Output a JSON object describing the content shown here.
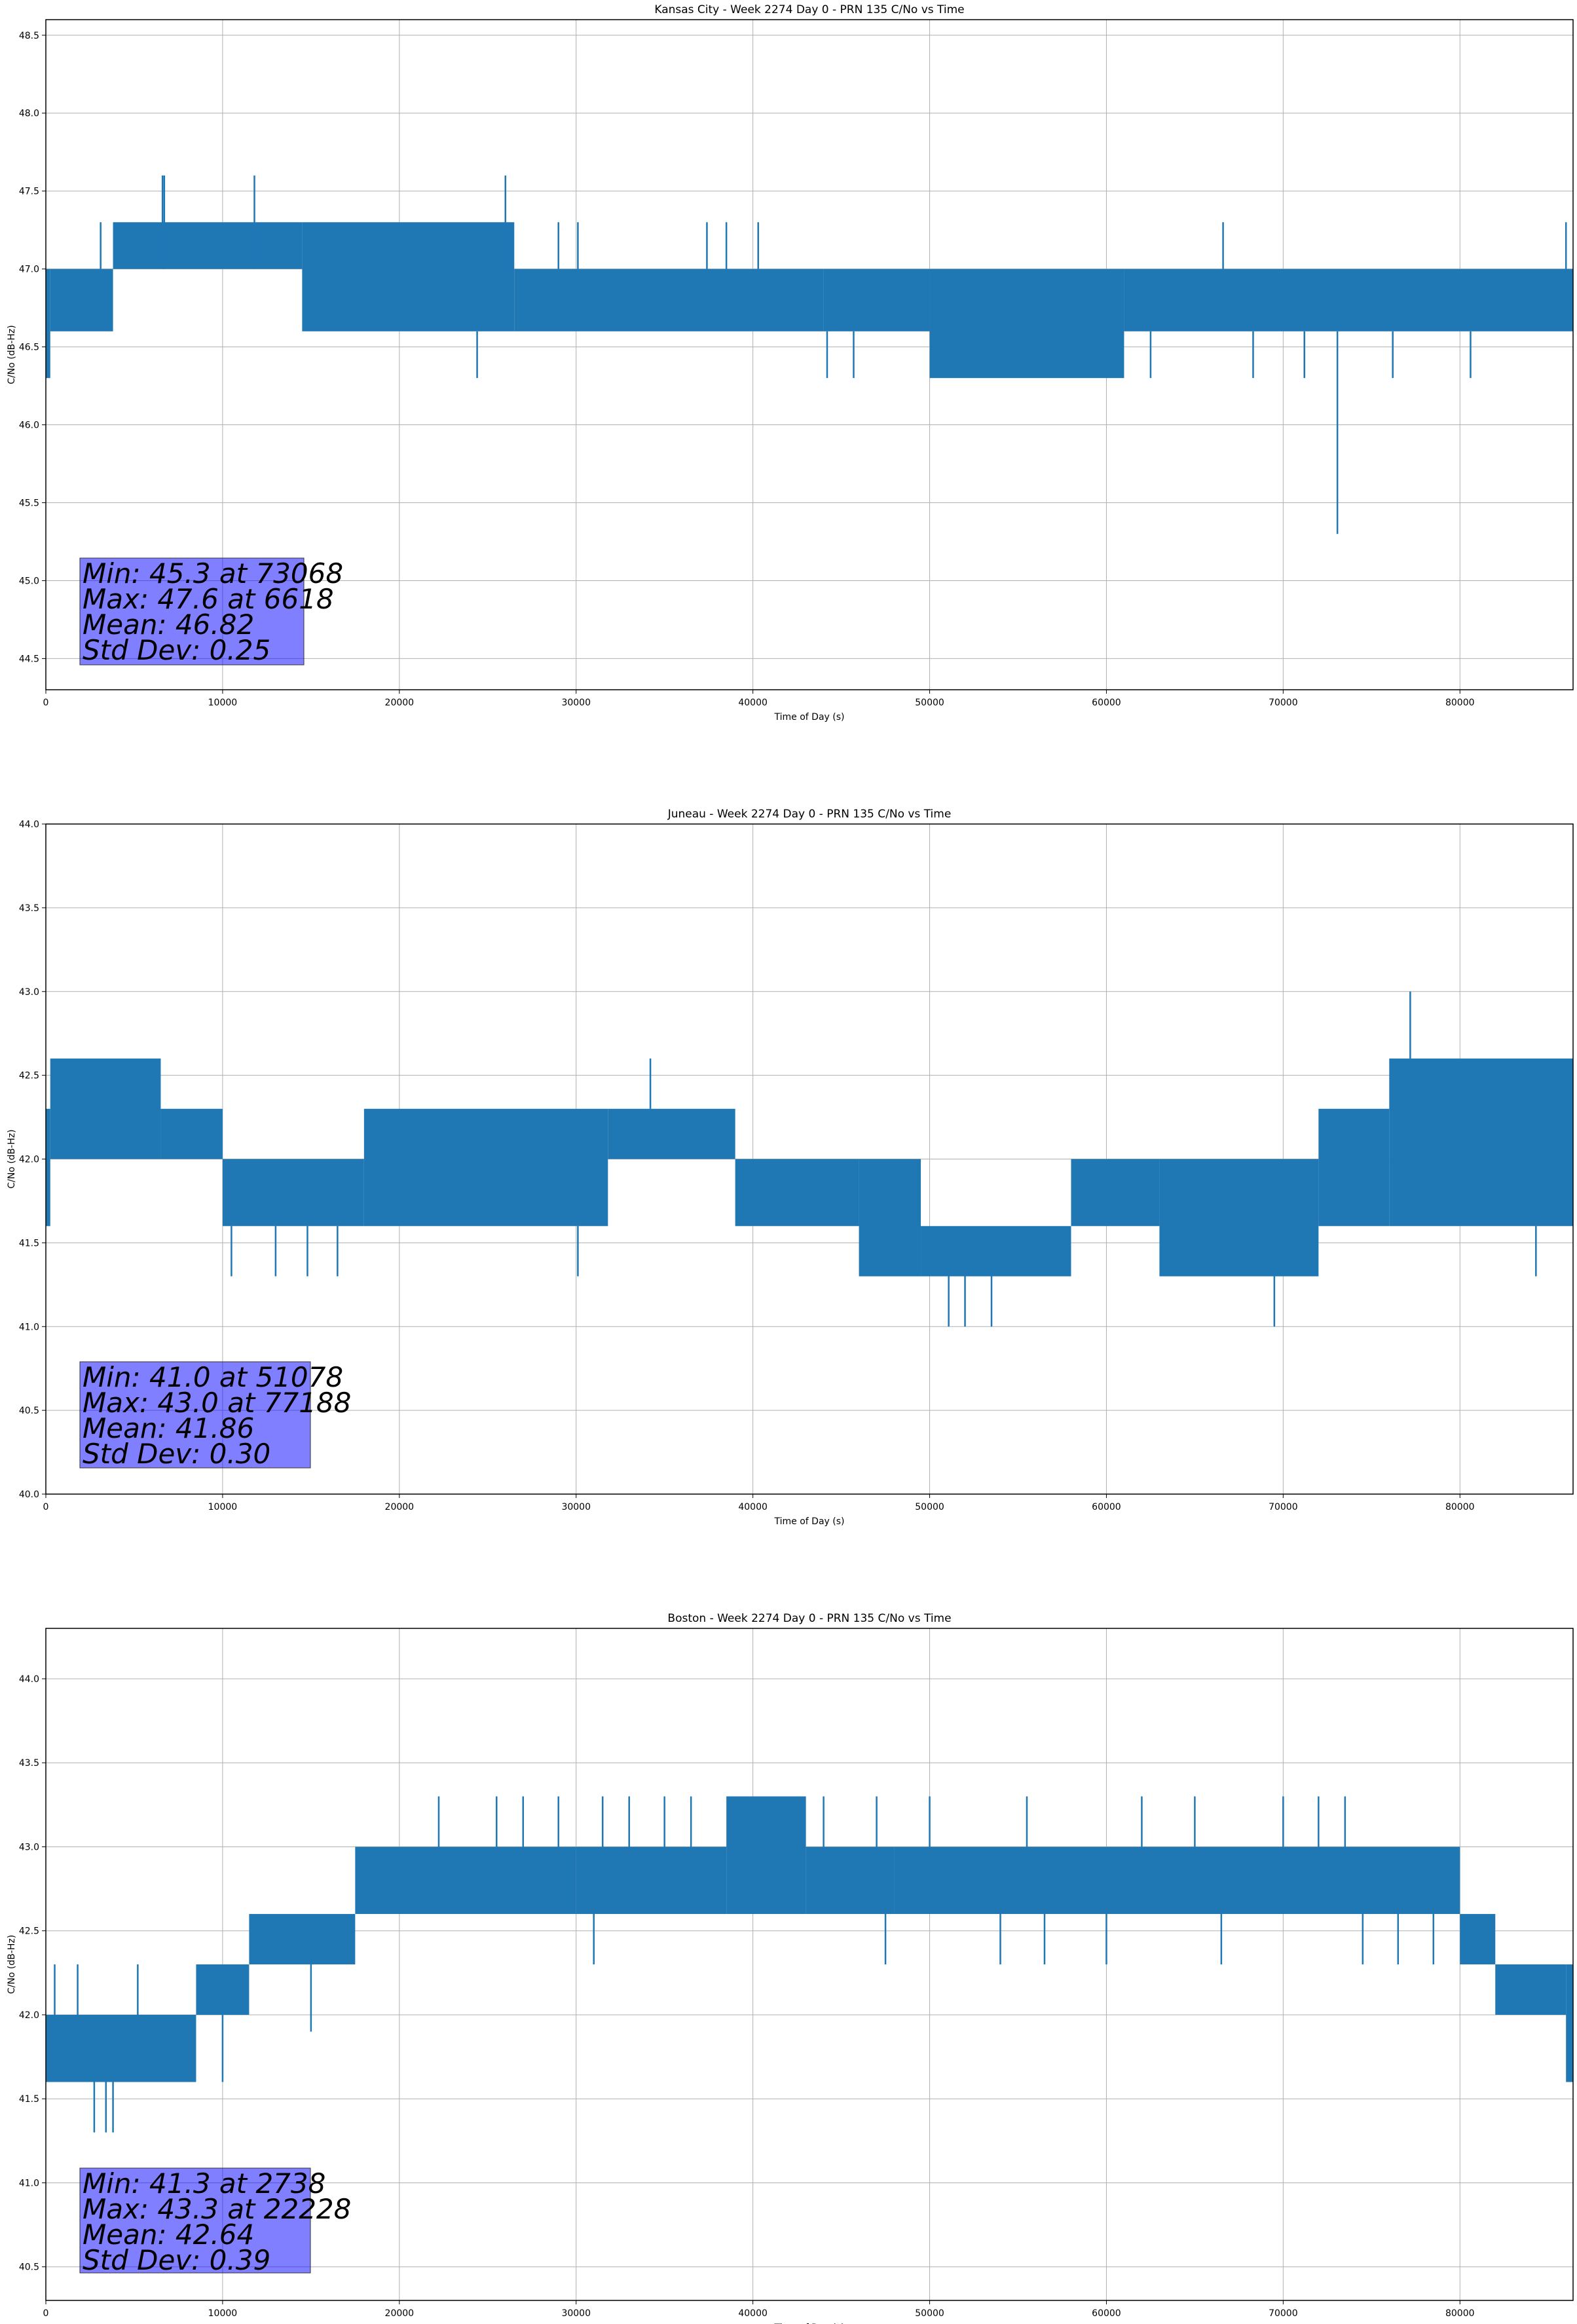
{
  "chart_data": [
    {
      "type": "line",
      "title": "Kansas City - Week 2274 Day 0 - PRN 135 C/No vs Time",
      "xlabel": "Time of Day (s)",
      "ylabel": "C/No (dB-Hz)",
      "xlim": [
        0,
        86400
      ],
      "ylim": [
        44.3,
        48.6
      ],
      "xticks": [
        0,
        10000,
        20000,
        30000,
        40000,
        50000,
        60000,
        70000,
        80000
      ],
      "xtick_labels": [
        "0",
        "10000",
        "20000",
        "30000",
        "40000",
        "50000",
        "60000",
        "70000",
        "80000"
      ],
      "yticks": [
        44.5,
        45.0,
        45.5,
        46.0,
        46.5,
        47.0,
        47.5,
        48.0,
        48.5
      ],
      "ytick_labels": [
        "44.5",
        "45.0",
        "45.5",
        "46.0",
        "46.5",
        "47.0",
        "47.5",
        "48.0",
        "48.5"
      ],
      "grid": true,
      "color": "#1f77b4",
      "segments": [
        {
          "x": [
            0,
            250
          ],
          "low": 46.3,
          "high": 47.0
        },
        {
          "x": [
            250,
            3800
          ],
          "low": 46.6,
          "high": 47.0
        },
        {
          "x": [
            3800,
            14500
          ],
          "low": 47.0,
          "high": 47.3
        },
        {
          "x": [
            14500,
            26500
          ],
          "low": 46.6,
          "high": 47.3
        },
        {
          "x": [
            26500,
            44000
          ],
          "low": 46.6,
          "high": 47.0
        },
        {
          "x": [
            44000,
            50000
          ],
          "low": 46.6,
          "high": 47.0
        },
        {
          "x": [
            50000,
            61000
          ],
          "low": 46.3,
          "high": 47.0
        },
        {
          "x": [
            61000,
            86400
          ],
          "low": 46.6,
          "high": 47.0
        }
      ],
      "spikes": [
        {
          "x": 6600,
          "low": 47.0,
          "high": 47.6
        },
        {
          "x": 6700,
          "low": 47.0,
          "high": 47.6
        },
        {
          "x": 11800,
          "low": 47.0,
          "high": 47.6
        },
        {
          "x": 26000,
          "low": 47.0,
          "high": 47.6
        },
        {
          "x": 24400,
          "low": 46.3,
          "high": 46.6
        },
        {
          "x": 3100,
          "low": 47.0,
          "high": 47.3
        },
        {
          "x": 29000,
          "low": 47.0,
          "high": 47.3
        },
        {
          "x": 30100,
          "low": 47.0,
          "high": 47.3
        },
        {
          "x": 37400,
          "low": 47.0,
          "high": 47.3
        },
        {
          "x": 38500,
          "low": 47.0,
          "high": 47.3
        },
        {
          "x": 40300,
          "low": 47.0,
          "high": 47.3
        },
        {
          "x": 66600,
          "low": 47.0,
          "high": 47.3
        },
        {
          "x": 86000,
          "low": 47.0,
          "high": 47.3
        },
        {
          "x": 44200,
          "low": 46.3,
          "high": 46.6
        },
        {
          "x": 45700,
          "low": 46.3,
          "high": 46.6
        },
        {
          "x": 62500,
          "low": 46.3,
          "high": 46.6
        },
        {
          "x": 68300,
          "low": 46.3,
          "high": 46.6
        },
        {
          "x": 71200,
          "low": 46.3,
          "high": 46.6
        },
        {
          "x": 76200,
          "low": 46.3,
          "high": 46.6
        },
        {
          "x": 80600,
          "low": 46.3,
          "high": 46.6
        },
        {
          "x": 73068,
          "low": 45.3,
          "high": 46.6
        }
      ],
      "stats_lines": [
        "Min: 45.3 at 73068",
        "Max: 47.6 at 6618",
        "Mean: 46.82",
        "Std Dev: 0.25"
      ]
    },
    {
      "type": "line",
      "title": "Juneau - Week 2274 Day 0 - PRN 135 C/No vs Time",
      "xlabel": "Time of Day (s)",
      "ylabel": "C/No (dB-Hz)",
      "xlim": [
        0,
        86400
      ],
      "ylim": [
        40.0,
        44.0
      ],
      "xticks": [
        0,
        10000,
        20000,
        30000,
        40000,
        50000,
        60000,
        70000,
        80000
      ],
      "xtick_labels": [
        "0",
        "10000",
        "20000",
        "30000",
        "40000",
        "50000",
        "60000",
        "70000",
        "80000"
      ],
      "yticks": [
        40.0,
        40.5,
        41.0,
        41.5,
        42.0,
        42.5,
        43.0,
        43.5,
        44.0
      ],
      "ytick_labels": [
        "40.0",
        "40.5",
        "41.0",
        "41.5",
        "42.0",
        "42.5",
        "43.0",
        "43.5",
        "44.0"
      ],
      "grid": true,
      "color": "#1f77b4",
      "segments": [
        {
          "x": [
            0,
            250
          ],
          "low": 41.6,
          "high": 42.3
        },
        {
          "x": [
            250,
            6500
          ],
          "low": 42.0,
          "high": 42.6
        },
        {
          "x": [
            6500,
            10000
          ],
          "low": 42.0,
          "high": 42.3
        },
        {
          "x": [
            10000,
            18000
          ],
          "low": 41.6,
          "high": 42.0
        },
        {
          "x": [
            18000,
            31800
          ],
          "low": 41.6,
          "high": 42.3
        },
        {
          "x": [
            31800,
            39000
          ],
          "low": 42.0,
          "high": 42.3
        },
        {
          "x": [
            39000,
            46000
          ],
          "low": 41.6,
          "high": 42.0
        },
        {
          "x": [
            46000,
            49500
          ],
          "low": 41.3,
          "high": 42.0
        },
        {
          "x": [
            49500,
            58000
          ],
          "low": 41.3,
          "high": 41.6
        },
        {
          "x": [
            58000,
            63000
          ],
          "low": 41.6,
          "high": 42.0
        },
        {
          "x": [
            63000,
            72000
          ],
          "low": 41.3,
          "high": 42.0
        },
        {
          "x": [
            72000,
            76000
          ],
          "low": 41.6,
          "high": 42.3
        },
        {
          "x": [
            76000,
            86400
          ],
          "low": 41.6,
          "high": 42.6
        }
      ],
      "spikes": [
        {
          "x": 34200,
          "low": 42.3,
          "high": 42.6
        },
        {
          "x": 77188,
          "low": 42.6,
          "high": 43.0
        },
        {
          "x": 51078,
          "low": 41.0,
          "high": 41.3
        },
        {
          "x": 52000,
          "low": 41.0,
          "high": 41.3
        },
        {
          "x": 53500,
          "low": 41.0,
          "high": 41.3
        },
        {
          "x": 69500,
          "low": 41.0,
          "high": 41.3
        },
        {
          "x": 30100,
          "low": 41.3,
          "high": 41.6
        },
        {
          "x": 10500,
          "low": 41.3,
          "high": 41.6
        },
        {
          "x": 13000,
          "low": 41.3,
          "high": 41.6
        },
        {
          "x": 14800,
          "low": 41.3,
          "high": 41.6
        },
        {
          "x": 16500,
          "low": 41.3,
          "high": 41.6
        },
        {
          "x": 84300,
          "low": 41.3,
          "high": 41.6
        }
      ],
      "stats_lines": [
        "Min: 41.0 at 51078",
        "Max: 43.0 at 77188",
        "Mean: 41.86",
        "Std Dev: 0.30"
      ]
    },
    {
      "type": "line",
      "title": "Boston - Week 2274 Day 0 - PRN 135 C/No vs Time",
      "xlabel": "Time of Day (s)",
      "ylabel": "C/No (dB-Hz)",
      "xlim": [
        0,
        86400
      ],
      "ylim": [
        40.3,
        44.3
      ],
      "xticks": [
        0,
        10000,
        20000,
        30000,
        40000,
        50000,
        60000,
        70000,
        80000
      ],
      "xtick_labels": [
        "0",
        "10000",
        "20000",
        "30000",
        "40000",
        "50000",
        "60000",
        "70000",
        "80000"
      ],
      "yticks": [
        40.5,
        41.0,
        41.5,
        42.0,
        42.5,
        43.0,
        43.5,
        44.0
      ],
      "ytick_labels": [
        "40.5",
        "41.0",
        "41.5",
        "42.0",
        "42.5",
        "43.0",
        "43.5",
        "44.0"
      ],
      "grid": true,
      "color": "#1f77b4",
      "segments": [
        {
          "x": [
            0,
            8500
          ],
          "low": 41.6,
          "high": 42.0
        },
        {
          "x": [
            8500,
            11500
          ],
          "low": 42.0,
          "high": 42.3
        },
        {
          "x": [
            11500,
            17500
          ],
          "low": 42.3,
          "high": 42.6
        },
        {
          "x": [
            17500,
            30000
          ],
          "low": 42.6,
          "high": 43.0
        },
        {
          "x": [
            30000,
            38500
          ],
          "low": 42.6,
          "high": 43.0
        },
        {
          "x": [
            38500,
            43000
          ],
          "low": 42.6,
          "high": 43.3
        },
        {
          "x": [
            43000,
            48000
          ],
          "low": 42.6,
          "high": 43.0
        },
        {
          "x": [
            48000,
            80000
          ],
          "low": 42.6,
          "high": 43.0
        },
        {
          "x": [
            80000,
            82000
          ],
          "low": 42.3,
          "high": 42.6
        },
        {
          "x": [
            82000,
            86000
          ],
          "low": 42.0,
          "high": 42.3
        },
        {
          "x": [
            86000,
            86400
          ],
          "low": 41.6,
          "high": 42.3
        }
      ],
      "spikes": [
        {
          "x": 2738,
          "low": 41.3,
          "high": 41.6
        },
        {
          "x": 3400,
          "low": 41.3,
          "high": 41.6
        },
        {
          "x": 3800,
          "low": 41.3,
          "high": 41.6
        },
        {
          "x": 500,
          "low": 42.0,
          "high": 42.3
        },
        {
          "x": 1800,
          "low": 42.0,
          "high": 42.3
        },
        {
          "x": 5200,
          "low": 42.0,
          "high": 42.3
        },
        {
          "x": 10000,
          "low": 41.6,
          "high": 42.0
        },
        {
          "x": 15000,
          "low": 41.9,
          "high": 42.3
        },
        {
          "x": 22228,
          "low": 43.0,
          "high": 43.3
        },
        {
          "x": 25500,
          "low": 43.0,
          "high": 43.3
        },
        {
          "x": 27000,
          "low": 43.0,
          "high": 43.3
        },
        {
          "x": 29000,
          "low": 43.0,
          "high": 43.3
        },
        {
          "x": 31500,
          "low": 43.0,
          "high": 43.3
        },
        {
          "x": 33000,
          "low": 43.0,
          "high": 43.3
        },
        {
          "x": 35000,
          "low": 43.0,
          "high": 43.3
        },
        {
          "x": 36500,
          "low": 43.0,
          "high": 43.3
        },
        {
          "x": 44000,
          "low": 43.0,
          "high": 43.3
        },
        {
          "x": 47000,
          "low": 43.0,
          "high": 43.3
        },
        {
          "x": 50000,
          "low": 43.0,
          "high": 43.3
        },
        {
          "x": 55500,
          "low": 43.0,
          "high": 43.3
        },
        {
          "x": 62000,
          "low": 43.0,
          "high": 43.3
        },
        {
          "x": 65000,
          "low": 43.0,
          "high": 43.3
        },
        {
          "x": 70000,
          "low": 43.0,
          "high": 43.3
        },
        {
          "x": 72000,
          "low": 43.0,
          "high": 43.3
        },
        {
          "x": 73500,
          "low": 43.0,
          "high": 43.3
        },
        {
          "x": 31000,
          "low": 42.3,
          "high": 42.6
        },
        {
          "x": 47500,
          "low": 42.3,
          "high": 42.6
        },
        {
          "x": 54000,
          "low": 42.3,
          "high": 42.6
        },
        {
          "x": 56500,
          "low": 42.3,
          "high": 42.6
        },
        {
          "x": 60000,
          "low": 42.3,
          "high": 42.6
        },
        {
          "x": 66500,
          "low": 42.3,
          "high": 42.6
        },
        {
          "x": 74500,
          "low": 42.3,
          "high": 42.6
        },
        {
          "x": 76500,
          "low": 42.3,
          "high": 42.6
        },
        {
          "x": 78500,
          "low": 42.3,
          "high": 42.6
        }
      ],
      "stats_lines": [
        "Min: 41.3 at 2738",
        "Max: 43.3 at 22228",
        "Mean: 42.64",
        "Std Dev: 0.39"
      ]
    }
  ]
}
